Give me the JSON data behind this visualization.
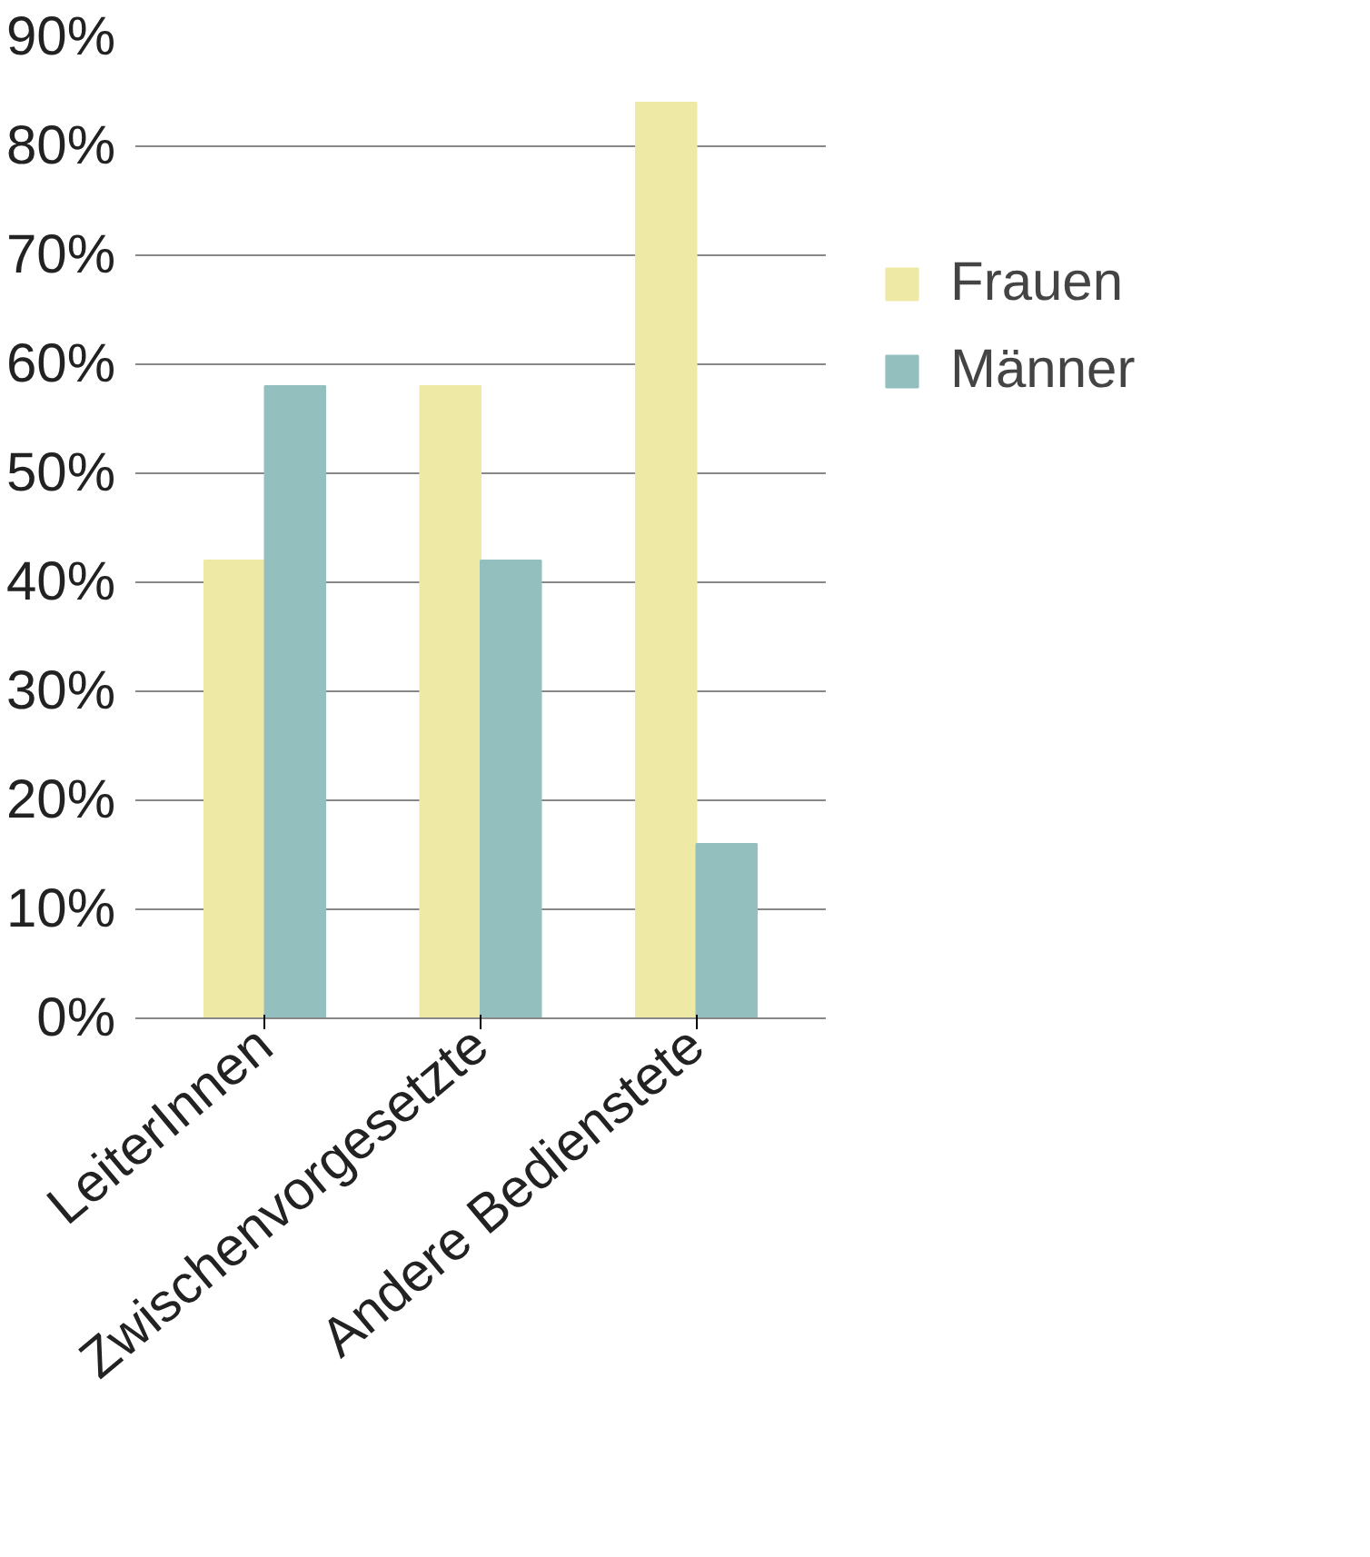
{
  "chart_data": {
    "type": "bar",
    "categories": [
      "LeiterInnen",
      "Zwischenvorgesetzte",
      "Andere Bedienstete"
    ],
    "series": [
      {
        "name": "Frauen",
        "color": "#eeeaa6",
        "values": [
          42,
          58,
          84
        ]
      },
      {
        "name": "Männer",
        "color": "#93bfbf",
        "values": [
          58,
          42,
          16
        ]
      }
    ],
    "ylim": [
      0,
      90
    ],
    "yticks": [
      {
        "value": 0,
        "label": "0%"
      },
      {
        "value": 10,
        "label": "10%"
      },
      {
        "value": 20,
        "label": "20%"
      },
      {
        "value": 30,
        "label": "30%"
      },
      {
        "value": 40,
        "label": "40%"
      },
      {
        "value": 50,
        "label": "50%"
      },
      {
        "value": 60,
        "label": "60%"
      },
      {
        "value": 70,
        "label": "70%"
      },
      {
        "value": 80,
        "label": "80%"
      },
      {
        "value": 90,
        "label": "90%"
      }
    ],
    "grid": "y",
    "legend": "right"
  }
}
